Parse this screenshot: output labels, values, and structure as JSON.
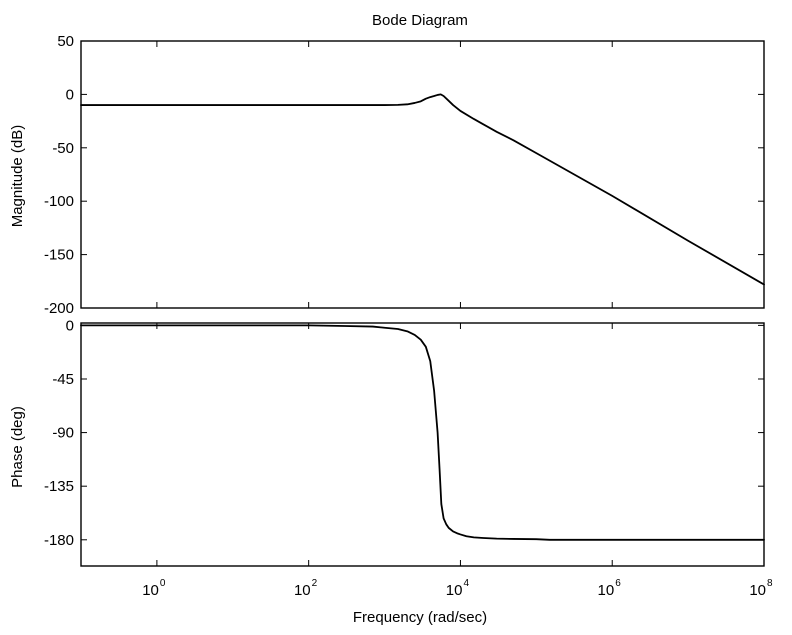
{
  "chart_data": [
    {
      "type": "line",
      "id": "magnitude",
      "title": "Bode Diagram",
      "xlabel": "",
      "ylabel": "Magnitude (dB)",
      "xscale": "log",
      "xlim": [
        0.1,
        100000000
      ],
      "ylim": [
        -200,
        50
      ],
      "yticks": [
        "50",
        "0",
        "-50",
        "-100",
        "-150",
        "-200"
      ],
      "yticks_values": [
        50,
        0,
        -50,
        -100,
        -150,
        -200
      ],
      "grid": false,
      "series": [
        {
          "x": [
            0.1,
            1,
            10,
            100,
            1000,
            1500,
            2000,
            2500,
            3000,
            3500,
            4000,
            4500,
            5000,
            5500,
            6000,
            7000,
            8000,
            10000,
            15000,
            20000,
            30000,
            50000,
            100000,
            1000000,
            10000000,
            100000000
          ],
          "y": [
            -10,
            -10,
            -10,
            -10,
            -10,
            -9.8,
            -9.3,
            -8,
            -6.5,
            -4,
            -2.5,
            -1.5,
            -0.5,
            0,
            -1.5,
            -6,
            -10,
            -15.5,
            -23,
            -28,
            -35,
            -43,
            -55,
            -95,
            -137,
            -178
          ]
        }
      ]
    },
    {
      "type": "line",
      "id": "phase",
      "title": "",
      "xlabel": "Frequency  (rad/sec)",
      "ylabel": "Phase (deg)",
      "xscale": "log",
      "xlim": [
        0.1,
        100000000
      ],
      "ylim": [
        -202,
        2
      ],
      "yticks": [
        "0",
        "-45",
        "-90",
        "-135",
        "-180"
      ],
      "yticks_values": [
        0,
        -45,
        -90,
        -135,
        -180
      ],
      "xticks_values": [
        1,
        100,
        10000,
        1000000,
        100000000
      ],
      "xticks": [
        {
          "base": "10",
          "exp": "0"
        },
        {
          "base": "10",
          "exp": "2"
        },
        {
          "base": "10",
          "exp": "4"
        },
        {
          "base": "10",
          "exp": "6"
        },
        {
          "base": "10",
          "exp": "8"
        }
      ],
      "grid": false,
      "series": [
        {
          "x": [
            0.1,
            1,
            10,
            100,
            300,
            700,
            1000,
            1500,
            2000,
            2500,
            3000,
            3500,
            4000,
            4500,
            5000,
            5300,
            5600,
            6000,
            6500,
            7000,
            8000,
            9000,
            10000,
            12000,
            15000,
            20000,
            30000,
            50000,
            100000,
            150000,
            1000000,
            10000000,
            100000000
          ],
          "y": [
            0,
            0,
            0,
            0,
            -0.5,
            -1,
            -2,
            -3,
            -5,
            -8,
            -12,
            -18,
            -30,
            -55,
            -90,
            -120,
            -150,
            -162,
            -167,
            -170,
            -173,
            -174.5,
            -175.5,
            -177,
            -178,
            -178.5,
            -179,
            -179.3,
            -179.5,
            -180,
            -180,
            -180,
            -180
          ]
        }
      ]
    }
  ]
}
